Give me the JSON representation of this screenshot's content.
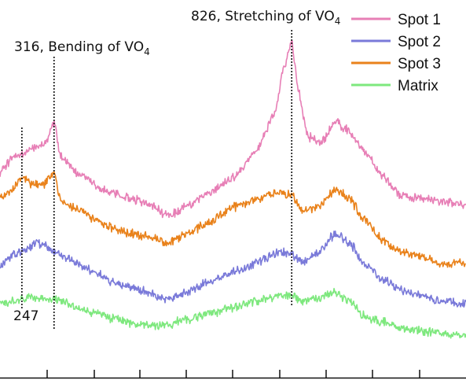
{
  "chart_data": {
    "type": "line",
    "title": "",
    "xlabel": "",
    "ylabel": "",
    "xlim": [
      200,
      1200
    ],
    "legend_position": "top-right",
    "grid": false,
    "annotations": [
      {
        "id": "a826",
        "x": 826,
        "text_main": "826, Stretching of VO",
        "text_sub": "4"
      },
      {
        "id": "a316",
        "x": 316,
        "text_main": "316, Bending of VO",
        "text_sub": "4"
      },
      {
        "id": "a247",
        "x": 247,
        "text_main": "247",
        "text_sub": ""
      }
    ],
    "series": [
      {
        "name": "Spot 1",
        "color": "#e77fb6",
        "points": [
          [
            200,
            0.56
          ],
          [
            230,
            0.61
          ],
          [
            247,
            0.62
          ],
          [
            270,
            0.64
          ],
          [
            300,
            0.66
          ],
          [
            316,
            0.73
          ],
          [
            330,
            0.61
          ],
          [
            370,
            0.55
          ],
          [
            420,
            0.5
          ],
          [
            480,
            0.47
          ],
          [
            520,
            0.45
          ],
          [
            560,
            0.41
          ],
          [
            600,
            0.44
          ],
          [
            650,
            0.49
          ],
          [
            700,
            0.54
          ],
          [
            750,
            0.63
          ],
          [
            790,
            0.76
          ],
          [
            810,
            0.92
          ],
          [
            826,
            1.0
          ],
          [
            840,
            0.84
          ],
          [
            860,
            0.68
          ],
          [
            890,
            0.66
          ],
          [
            920,
            0.73
          ],
          [
            950,
            0.7
          ],
          [
            980,
            0.63
          ],
          [
            1020,
            0.55
          ],
          [
            1060,
            0.48
          ],
          [
            1100,
            0.47
          ],
          [
            1150,
            0.46
          ],
          [
            1200,
            0.45
          ]
        ]
      },
      {
        "name": "Spot 3",
        "color": "#e9821b",
        "points": [
          [
            200,
            0.47
          ],
          [
            230,
            0.5
          ],
          [
            247,
            0.55
          ],
          [
            265,
            0.52
          ],
          [
            295,
            0.52
          ],
          [
            316,
            0.56
          ],
          [
            330,
            0.46
          ],
          [
            370,
            0.43
          ],
          [
            420,
            0.38
          ],
          [
            480,
            0.35
          ],
          [
            520,
            0.34
          ],
          [
            560,
            0.32
          ],
          [
            600,
            0.35
          ],
          [
            650,
            0.39
          ],
          [
            700,
            0.44
          ],
          [
            750,
            0.47
          ],
          [
            800,
            0.49
          ],
          [
            826,
            0.48
          ],
          [
            850,
            0.43
          ],
          [
            880,
            0.44
          ],
          [
            920,
            0.5
          ],
          [
            950,
            0.47
          ],
          [
            980,
            0.4
          ],
          [
            1020,
            0.33
          ],
          [
            1060,
            0.29
          ],
          [
            1100,
            0.27
          ],
          [
            1150,
            0.25
          ],
          [
            1200,
            0.25
          ]
        ]
      },
      {
        "name": "Spot 2",
        "color": "#7a7ad9",
        "points": [
          [
            200,
            0.24
          ],
          [
            230,
            0.28
          ],
          [
            247,
            0.29
          ],
          [
            280,
            0.32
          ],
          [
            316,
            0.29
          ],
          [
            350,
            0.26
          ],
          [
            400,
            0.22
          ],
          [
            450,
            0.18
          ],
          [
            500,
            0.16
          ],
          [
            560,
            0.13
          ],
          [
            600,
            0.15
          ],
          [
            650,
            0.19
          ],
          [
            700,
            0.22
          ],
          [
            750,
            0.25
          ],
          [
            800,
            0.29
          ],
          [
            826,
            0.28
          ],
          [
            850,
            0.25
          ],
          [
            880,
            0.28
          ],
          [
            920,
            0.35
          ],
          [
            950,
            0.32
          ],
          [
            980,
            0.25
          ],
          [
            1020,
            0.2
          ],
          [
            1060,
            0.16
          ],
          [
            1100,
            0.14
          ],
          [
            1150,
            0.12
          ],
          [
            1200,
            0.11
          ]
        ]
      },
      {
        "name": "Matrix",
        "color": "#7ee87e",
        "points": [
          [
            200,
            0.12
          ],
          [
            230,
            0.12
          ],
          [
            247,
            0.13
          ],
          [
            280,
            0.13
          ],
          [
            316,
            0.13
          ],
          [
            350,
            0.11
          ],
          [
            400,
            0.08
          ],
          [
            450,
            0.06
          ],
          [
            500,
            0.04
          ],
          [
            560,
            0.04
          ],
          [
            600,
            0.06
          ],
          [
            650,
            0.08
          ],
          [
            700,
            0.1
          ],
          [
            750,
            0.12
          ],
          [
            800,
            0.14
          ],
          [
            826,
            0.14
          ],
          [
            850,
            0.12
          ],
          [
            880,
            0.13
          ],
          [
            920,
            0.15
          ],
          [
            950,
            0.12
          ],
          [
            980,
            0.07
          ],
          [
            1020,
            0.05
          ],
          [
            1060,
            0.03
          ],
          [
            1100,
            0.02
          ],
          [
            1150,
            0.01
          ],
          [
            1200,
            0.01
          ]
        ]
      }
    ],
    "legend_order": [
      "Spot 1",
      "Spot 2",
      "Spot 3",
      "Matrix"
    ]
  }
}
